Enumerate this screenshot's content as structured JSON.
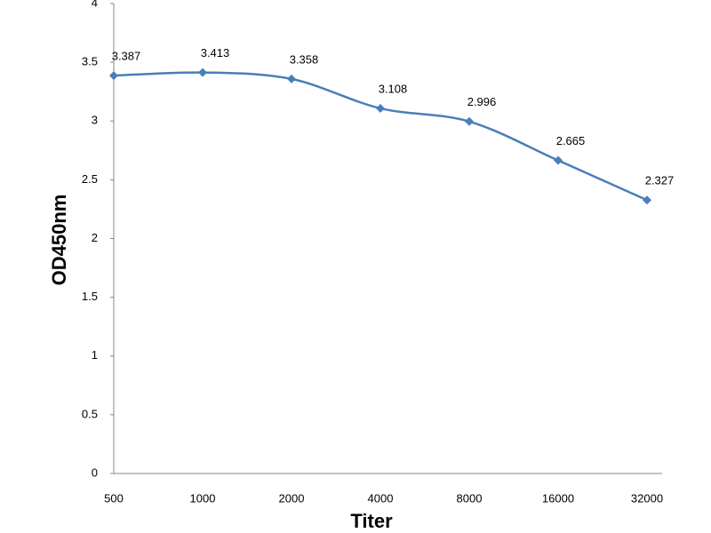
{
  "chart_data": {
    "type": "line",
    "x_label": "Titer",
    "y_label": "OD450nm",
    "categories": [
      "500",
      "1000",
      "2000",
      "4000",
      "8000",
      "16000",
      "32000"
    ],
    "series": [
      {
        "color": "#4a7ebb",
        "values": [
          3.387,
          3.413,
          3.358,
          3.108,
          2.996,
          2.665,
          2.327
        ]
      }
    ],
    "ylim": [
      0,
      4
    ],
    "yticks": [
      0,
      0.5,
      1,
      1.5,
      2,
      2.5,
      3,
      3.5,
      4
    ],
    "grid": false,
    "data_labels": true,
    "markers": "diamond"
  }
}
